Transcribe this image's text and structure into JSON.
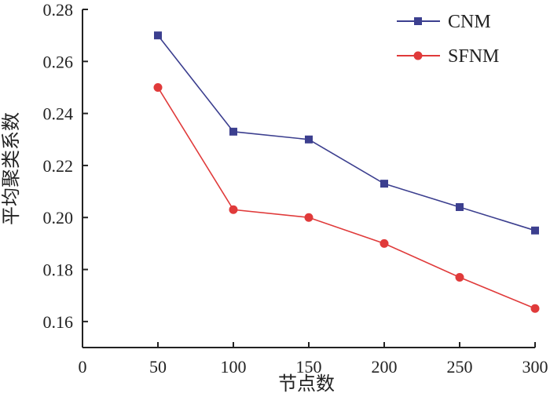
{
  "chart_data": {
    "type": "line",
    "title": "",
    "xlabel": "节点数",
    "ylabel": "平均聚类系数",
    "x": [
      50,
      100,
      150,
      200,
      250,
      300
    ],
    "xlim": [
      0,
      300
    ],
    "ylim": [
      0.15,
      0.28
    ],
    "xticks": [
      "0",
      "50",
      "100",
      "150",
      "200",
      "250",
      "300"
    ],
    "yticks": [
      "0.16",
      "0.18",
      "0.20",
      "0.22",
      "0.24",
      "0.26",
      "0.28"
    ],
    "grid": false,
    "legend_position": "top-right",
    "series": [
      {
        "name": "CNM",
        "marker": "square",
        "color": "#3c3f8f",
        "values": [
          0.27,
          0.233,
          0.23,
          0.213,
          0.204,
          0.195
        ]
      },
      {
        "name": "SFNM",
        "marker": "circle",
        "color": "#e03a3a",
        "values": [
          0.25,
          0.203,
          0.2,
          0.19,
          0.177,
          0.165
        ]
      }
    ]
  }
}
